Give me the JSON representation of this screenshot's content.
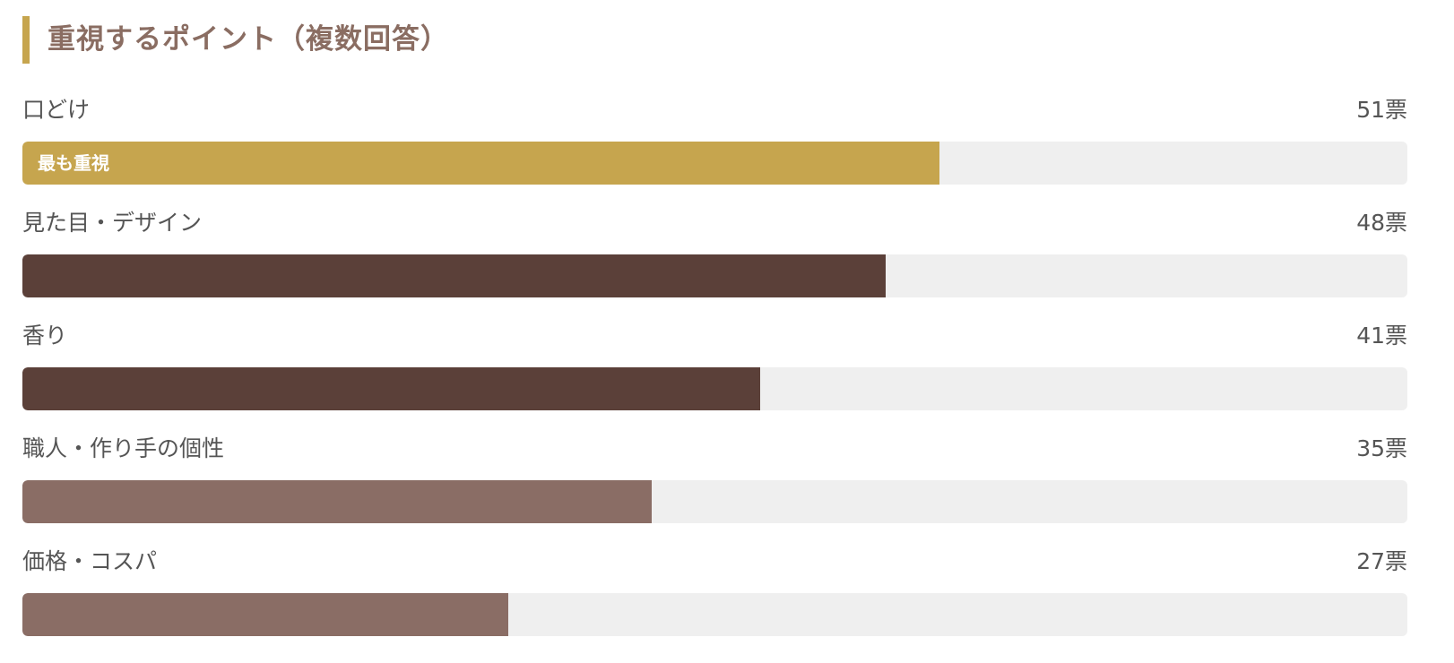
{
  "header": {
    "title": "重視するポイント（複数回答）",
    "accent_color": "#c6a54e"
  },
  "vote_unit": "票",
  "top_badge": "最も重視",
  "colors": {
    "top": "#c6a54e",
    "high": "#5b4039",
    "mid": "#8a6d65",
    "track": "#efefef"
  },
  "chart_data": {
    "type": "bar",
    "orientation": "horizontal",
    "title": "重視するポイント（複数回答）",
    "categories": [
      "口どけ",
      "見た目・デザイン",
      "香り",
      "職人・作り手の個性",
      "価格・コスパ"
    ],
    "values": [
      51,
      48,
      41,
      35,
      27
    ],
    "value_labels": [
      "51票",
      "48票",
      "41票",
      "35票",
      "27票"
    ],
    "bar_colors": [
      "#c6a54e",
      "#5b4039",
      "#5b4039",
      "#8a6d65",
      "#8a6d65"
    ],
    "xlim": [
      0,
      77
    ],
    "grid": false,
    "legend": "none",
    "annotations": [
      {
        "category": "口どけ",
        "text": "最も重視"
      }
    ]
  }
}
